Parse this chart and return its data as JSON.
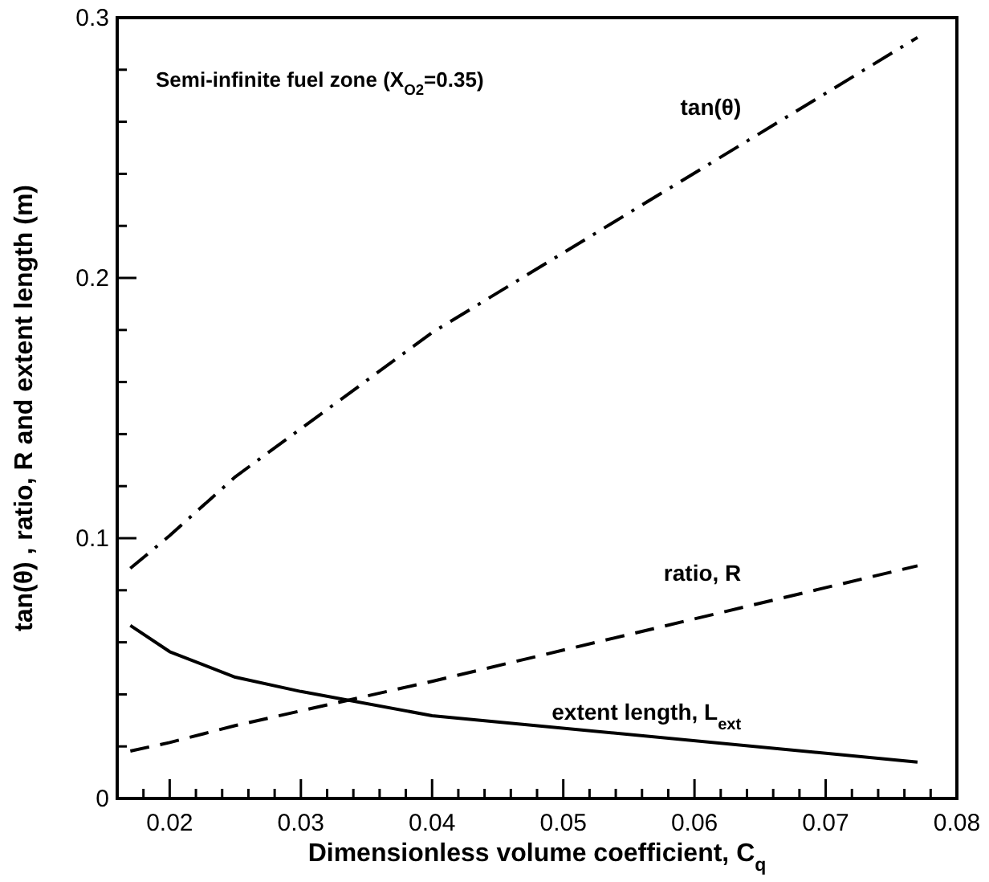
{
  "chart_data": {
    "type": "line",
    "xlabel": "Dimensionless volume coefficient, C$_{q}$",
    "ylabel": "tan(θ) , ratio, R and extent length (m)",
    "annotations": [
      "Semi-infinite fuel zone (X$_{O2}$=0.35)"
    ],
    "xlim": [
      0.016,
      0.08
    ],
    "ylim": [
      0,
      0.3
    ],
    "xticks": [
      {
        "value": 0.018,
        "label": null
      },
      0.02,
      {
        "value": 0.022,
        "label": null
      },
      {
        "value": 0.024,
        "label": null
      },
      {
        "value": 0.026,
        "label": null
      },
      {
        "value": 0.028,
        "label": null
      },
      0.03,
      {
        "value": 0.032,
        "label": null
      },
      {
        "value": 0.034,
        "label": null
      },
      {
        "value": 0.036,
        "label": null
      },
      {
        "value": 0.038,
        "label": null
      },
      0.04,
      {
        "value": 0.042,
        "label": null
      },
      {
        "value": 0.044,
        "label": null
      },
      {
        "value": 0.046,
        "label": null
      },
      {
        "value": 0.048,
        "label": null
      },
      0.05,
      {
        "value": 0.052,
        "label": null
      },
      {
        "value": 0.054,
        "label": null
      },
      {
        "value": 0.056,
        "label": null
      },
      {
        "value": 0.058,
        "label": null
      },
      0.06,
      {
        "value": 0.062,
        "label": null
      },
      {
        "value": 0.064,
        "label": null
      },
      {
        "value": 0.066,
        "label": null
      },
      {
        "value": 0.068,
        "label": null
      },
      0.07,
      {
        "value": 0.072,
        "label": null
      },
      {
        "value": 0.074,
        "label": null
      },
      {
        "value": 0.076,
        "label": null
      },
      {
        "value": 0.078,
        "label": null
      },
      0.08
    ],
    "yticks": [
      0,
      {
        "value": 0.02,
        "label": null
      },
      {
        "value": 0.04,
        "label": null
      },
      {
        "value": 0.06,
        "label": null
      },
      {
        "value": 0.08,
        "label": null
      },
      0.1,
      {
        "value": 0.12,
        "label": null
      },
      {
        "value": 0.14,
        "label": null
      },
      {
        "value": 0.16,
        "label": null
      },
      {
        "value": 0.18,
        "label": null
      },
      0.2,
      {
        "value": 0.22,
        "label": null
      },
      {
        "value": 0.24,
        "label": null
      },
      {
        "value": 0.26,
        "label": null
      },
      {
        "value": 0.28,
        "label": null
      },
      0.3
    ],
    "series": [
      {
        "name": "tan(θ)",
        "color": "#000000",
        "line_style": "dashdot",
        "x": [
          0.017,
          0.02,
          0.025,
          0.04,
          0.077
        ],
        "values": [
          0.0884,
          0.101,
          0.1236,
          0.179,
          0.2924
        ]
      },
      {
        "name": "ratio, R",
        "color": "#000000",
        "line_style": "dashed",
        "x": [
          0.017,
          0.02,
          0.025,
          0.04,
          0.077
        ],
        "values": [
          0.0182,
          0.0215,
          0.028,
          0.045,
          0.0894
        ]
      },
      {
        "name": "extent length, L$_{ext}$",
        "color": "#000000",
        "line_style": "solid",
        "x": [
          0.017,
          0.02,
          0.025,
          0.03,
          0.04,
          0.077
        ],
        "values": [
          0.0665,
          0.0564,
          0.0466,
          0.0411,
          0.0318,
          0.014
        ]
      }
    ]
  }
}
